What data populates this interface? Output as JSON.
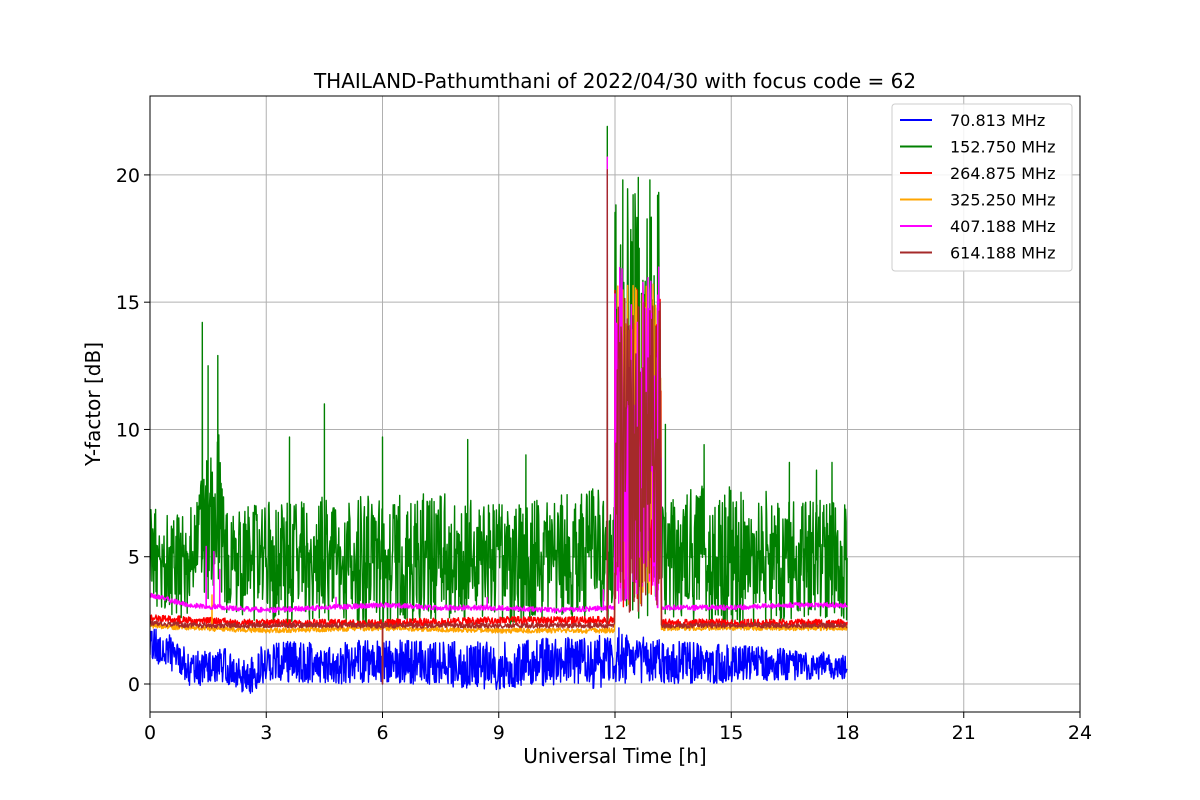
{
  "chart_data": {
    "type": "line",
    "title": "THAILAND-Pathumthani of 2022/04/30 with focus code = 62",
    "xlabel": "Universal Time [h]",
    "ylabel": "Y-factor [dB]",
    "xlim": [
      0,
      24
    ],
    "ylim": [
      -1.1,
      23.1
    ],
    "xticks": [
      0,
      3,
      6,
      9,
      12,
      15,
      18,
      21,
      24
    ],
    "yticks": [
      0,
      5,
      10,
      15,
      20
    ],
    "grid": true,
    "legend_position": "top-right",
    "series": [
      {
        "name": " 70.813 MHz",
        "color": "#0000ff",
        "base": [
          [
            0,
            1.6
          ],
          [
            0.5,
            1.3
          ],
          [
            1,
            0.6
          ],
          [
            2,
            0.7
          ],
          [
            2.5,
            0.2
          ],
          [
            3,
            0.9
          ],
          [
            4.5,
            0.8
          ],
          [
            6,
            0.9
          ],
          [
            7.5,
            0.8
          ],
          [
            9,
            0.7
          ],
          [
            10.5,
            0.9
          ],
          [
            11.5,
            0.8
          ],
          [
            12,
            1.0
          ],
          [
            13,
            0.9
          ],
          [
            14.5,
            0.8
          ],
          [
            16,
            0.8
          ],
          [
            18,
            0.7
          ]
        ],
        "amplitude": [
          [
            0,
            0.7
          ],
          [
            2,
            0.7
          ],
          [
            2.5,
            0.7
          ],
          [
            3,
            0.8
          ],
          [
            12,
            1.0
          ],
          [
            13,
            0.9
          ],
          [
            18,
            0.5
          ]
        ],
        "spikes": [
          [
            6.0,
            0.0
          ],
          [
            9.5,
            0.0
          ],
          [
            2.4,
            0.0
          ],
          [
            11.6,
            1.9
          ],
          [
            12.1,
            2.2
          ]
        ]
      },
      {
        "name": "152.750 MHz",
        "color": "#008000",
        "base": [
          [
            0,
            5.0
          ],
          [
            0.5,
            4.8
          ],
          [
            1,
            4.6
          ],
          [
            1.3,
            6.0
          ],
          [
            1.8,
            6.5
          ],
          [
            2,
            4.7
          ],
          [
            3,
            4.8
          ],
          [
            4.5,
            4.9
          ],
          [
            6,
            4.8
          ],
          [
            7.5,
            5.0
          ],
          [
            9,
            4.7
          ],
          [
            10.5,
            4.9
          ],
          [
            11.5,
            5.2
          ],
          [
            11.9,
            4.8
          ],
          [
            12,
            4.9
          ],
          [
            13.1,
            5.0
          ],
          [
            14.5,
            5.1
          ],
          [
            16,
            5.0
          ],
          [
            18,
            4.8
          ]
        ],
        "amplitude": [
          [
            0,
            2.0
          ],
          [
            1.2,
            2.2
          ],
          [
            1.8,
            3.5
          ],
          [
            2,
            2.0
          ],
          [
            3,
            2.4
          ],
          [
            6,
            2.6
          ],
          [
            9,
            2.4
          ],
          [
            11.8,
            2.6
          ],
          [
            12,
            2.6
          ],
          [
            13.2,
            2.5
          ],
          [
            14.5,
            2.8
          ],
          [
            18,
            2.3
          ]
        ],
        "spikes": [
          [
            1.35,
            14.2
          ],
          [
            1.5,
            12.5
          ],
          [
            1.75,
            12.9
          ],
          [
            4.5,
            11.0
          ],
          [
            3.6,
            9.7
          ],
          [
            6.0,
            9.7
          ],
          [
            8.2,
            9.6
          ],
          [
            9.7,
            9.0
          ],
          [
            11.8,
            21.9
          ],
          [
            13.3,
            10.2
          ],
          [
            14.3,
            9.4
          ],
          [
            16.5,
            8.7
          ],
          [
            17.2,
            8.4
          ],
          [
            17.6,
            8.7
          ],
          [
            12.2,
            19.8
          ],
          [
            12.6,
            19.9
          ],
          [
            12.9,
            19.8
          ],
          [
            13.1,
            19.2
          ]
        ],
        "burst": {
          "x0": 12.0,
          "x1": 13.2,
          "lo": 2.5,
          "hi": 19.5
        }
      },
      {
        "name": "264.875 MHz",
        "color": "#ff0000",
        "base": [
          [
            0,
            2.6
          ],
          [
            1,
            2.5
          ],
          [
            3,
            2.4
          ],
          [
            6,
            2.4
          ],
          [
            9,
            2.5
          ],
          [
            12,
            2.5
          ],
          [
            13.2,
            2.4
          ],
          [
            15,
            2.4
          ],
          [
            18,
            2.4
          ]
        ],
        "amplitude": [
          [
            0,
            0.15
          ],
          [
            18,
            0.15
          ]
        ],
        "spikes": [
          [
            6.0,
            0.1
          ],
          [
            11.8,
            4.0
          ]
        ],
        "burst": {
          "x0": 12.0,
          "x1": 13.2,
          "lo": 3.0,
          "hi": 15.5
        }
      },
      {
        "name": "325.250 MHz",
        "color": "#ffa500",
        "base": [
          [
            0,
            2.3
          ],
          [
            1,
            2.2
          ],
          [
            3,
            2.1
          ],
          [
            6,
            2.2
          ],
          [
            9,
            2.1
          ],
          [
            12,
            2.1
          ],
          [
            13.2,
            2.2
          ],
          [
            15,
            2.2
          ],
          [
            18,
            2.2
          ]
        ],
        "amplitude": [
          [
            0,
            0.1
          ],
          [
            18,
            0.1
          ]
        ],
        "spikes": [
          [
            6.0,
            0.1
          ],
          [
            1.6,
            3.5
          ],
          [
            11.8,
            3.8
          ]
        ],
        "burst": {
          "x0": 12.0,
          "x1": 13.2,
          "lo": 3.0,
          "hi": 16.0
        }
      },
      {
        "name": "407.188 MHz",
        "color": "#ff00ff",
        "base": [
          [
            0,
            3.5
          ],
          [
            0.5,
            3.3
          ],
          [
            1,
            3.1
          ],
          [
            2,
            3.0
          ],
          [
            3,
            2.9
          ],
          [
            4.5,
            3.0
          ],
          [
            6,
            3.1
          ],
          [
            7.5,
            3.0
          ],
          [
            9,
            3.0
          ],
          [
            10.5,
            2.9
          ],
          [
            12,
            3.0
          ],
          [
            13.2,
            3.0
          ],
          [
            15,
            3.0
          ],
          [
            16.5,
            3.1
          ],
          [
            18,
            3.1
          ]
        ],
        "amplitude": [
          [
            0,
            0.1
          ],
          [
            18,
            0.1
          ]
        ],
        "spikes": [
          [
            1.45,
            5.4
          ],
          [
            1.65,
            5.2
          ],
          [
            1.8,
            4.5
          ],
          [
            4.8,
            3.4
          ],
          [
            8.7,
            3.4
          ],
          [
            11.7,
            3.7
          ],
          [
            11.8,
            20.7
          ],
          [
            13.1,
            13.0
          ]
        ],
        "burst": {
          "x0": 12.0,
          "x1": 13.2,
          "lo": 3.0,
          "hi": 16.4
        }
      },
      {
        "name": "614.188 MHz",
        "color": "#a52a2a",
        "base": [
          [
            0,
            2.4
          ],
          [
            1,
            2.3
          ],
          [
            3,
            2.3
          ],
          [
            6,
            2.3
          ],
          [
            9,
            2.3
          ],
          [
            12,
            2.3
          ],
          [
            13.2,
            2.3
          ],
          [
            18,
            2.3
          ]
        ],
        "amplitude": [
          [
            0,
            0.1
          ],
          [
            18,
            0.1
          ]
        ],
        "spikes": [
          [
            6.0,
            0.0
          ],
          [
            11.8,
            20.2
          ]
        ],
        "burst": {
          "x0": 12.0,
          "x1": 13.2,
          "lo": 2.5,
          "hi": 15.2
        }
      }
    ]
  }
}
